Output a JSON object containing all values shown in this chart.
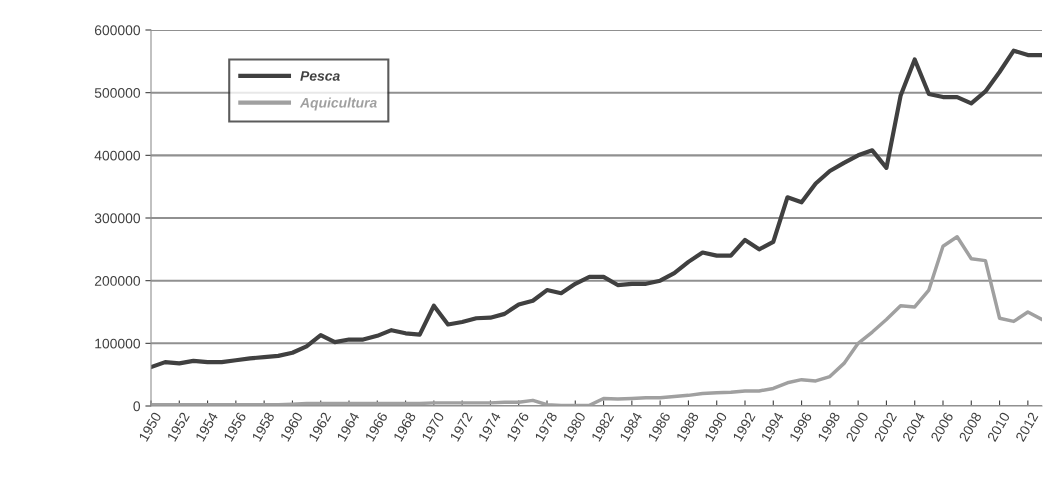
{
  "chart_data": {
    "type": "line",
    "x": [
      1950,
      1951,
      1952,
      1953,
      1954,
      1955,
      1956,
      1957,
      1958,
      1959,
      1960,
      1961,
      1962,
      1963,
      1964,
      1965,
      1966,
      1967,
      1968,
      1969,
      1970,
      1971,
      1972,
      1973,
      1974,
      1975,
      1976,
      1977,
      1978,
      1979,
      1980,
      1981,
      1982,
      1983,
      1984,
      1985,
      1986,
      1987,
      1988,
      1989,
      1990,
      1991,
      1992,
      1993,
      1994,
      1995,
      1996,
      1997,
      1998,
      1999,
      2000,
      2001,
      2002,
      2003,
      2004,
      2005,
      2006,
      2007,
      2008,
      2009,
      2010,
      2011,
      2012,
      2013
    ],
    "series": [
      {
        "name": "Pesca",
        "color": "#404040",
        "values": [
          62000,
          70000,
          68000,
          72000,
          70000,
          70000,
          73000,
          76000,
          78000,
          80000,
          85000,
          95000,
          113000,
          102000,
          106000,
          106000,
          112000,
          121000,
          116000,
          114000,
          160000,
          130000,
          134000,
          140000,
          141000,
          147000,
          162000,
          168000,
          185000,
          180000,
          195000,
          206000,
          206000,
          193000,
          195000,
          195000,
          200000,
          212000,
          230000,
          245000,
          240000,
          240000,
          265000,
          250000,
          262000,
          333000,
          325000,
          355000,
          375000,
          388000,
          400000,
          408000,
          380000,
          495000,
          553000,
          498000,
          493000,
          493000,
          483000,
          502000,
          533000,
          567000,
          560000,
          560000
        ]
      },
      {
        "name": "Aquicultura",
        "color": "#a0a0a0",
        "values": [
          2000,
          2000,
          2000,
          2000,
          2000,
          2000,
          2000,
          2000,
          2000,
          2000,
          3000,
          4000,
          4000,
          4000,
          4000,
          4000,
          4000,
          4000,
          4000,
          4000,
          5000,
          5000,
          5000,
          5000,
          5000,
          6000,
          6000,
          9000,
          2000,
          1000,
          1000,
          1000,
          12000,
          11000,
          12000,
          13000,
          13000,
          15000,
          17000,
          20000,
          21000,
          22000,
          24000,
          24000,
          28000,
          37000,
          42000,
          40000,
          47000,
          68000,
          100000,
          118000,
          138000,
          160000,
          158000,
          185000,
          255000,
          270000,
          235000,
          232000,
          140000,
          135000,
          150000,
          138000
        ]
      }
    ],
    "xlim": [
      1950,
      2013
    ],
    "xticks": [
      1950,
      1952,
      1954,
      1956,
      1958,
      1960,
      1962,
      1964,
      1966,
      1968,
      1970,
      1972,
      1974,
      1976,
      1978,
      1980,
      1982,
      1984,
      1986,
      1988,
      1990,
      1992,
      1994,
      1996,
      1998,
      2000,
      2002,
      2004,
      2006,
      2008,
      2010,
      2012
    ],
    "ylim": [
      0,
      600000
    ],
    "yticks": [
      0,
      100000,
      200000,
      300000,
      400000,
      500000,
      600000
    ],
    "grid": "y",
    "legend": "top left",
    "marker": "none",
    "line_style": "solid"
  }
}
